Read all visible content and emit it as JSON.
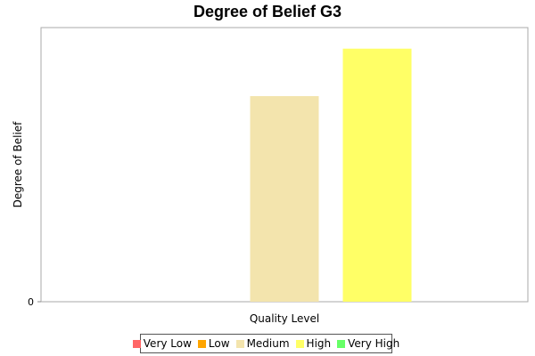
{
  "chart_data": {
    "type": "bar",
    "title": "Degree of Belief G3",
    "xlabel": "Quality Level",
    "ylabel": "Degree of Belief",
    "categories": [
      ""
    ],
    "series": [
      {
        "name": "Very Low",
        "color": "#ff6666",
        "values": [
          0
        ]
      },
      {
        "name": "Low",
        "color": "#ffa500",
        "values": [
          0
        ]
      },
      {
        "name": "Medium",
        "color": "#f3e4ad",
        "values": [
          0.78
        ]
      },
      {
        "name": "High",
        "color": "#ffff66",
        "values": [
          0.96
        ]
      },
      {
        "name": "Very High",
        "color": "#66ff66",
        "values": [
          0
        ]
      }
    ],
    "yticks": [
      {
        "value": 0,
        "label": "0"
      }
    ],
    "ylim": [
      0,
      1.04
    ],
    "grid": false,
    "legend": "bottom"
  }
}
